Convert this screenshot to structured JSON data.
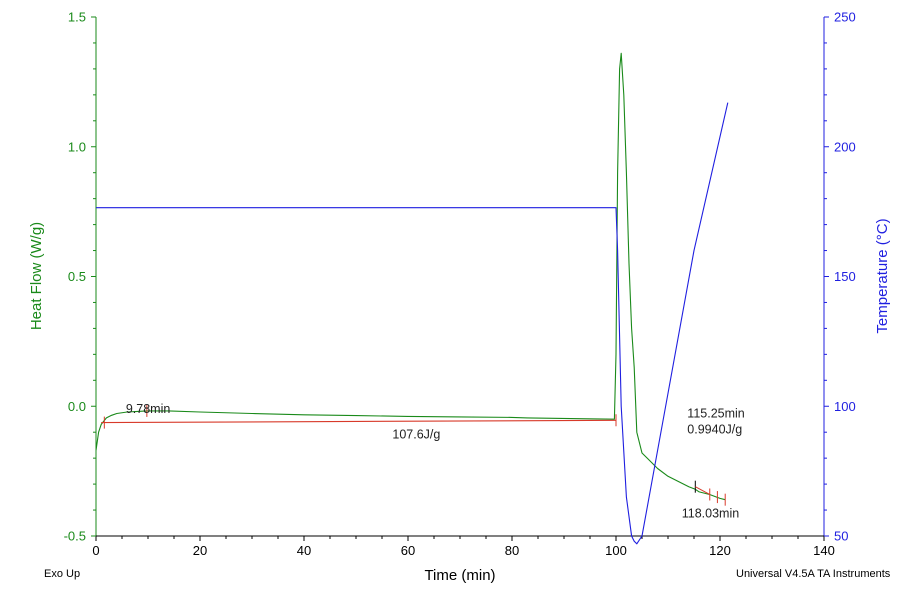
{
  "chart_data": {
    "type": "line",
    "xlabel": "Time (min)",
    "ylabel_left": "Heat Flow (W/g)",
    "ylabel_right": "Temperature (°C)",
    "xlim": [
      0,
      140
    ],
    "ylim_left": [
      -0.5,
      1.5
    ],
    "ylim_right": [
      50,
      250
    ],
    "x_ticks": [
      "0",
      "20",
      "40",
      "60",
      "80",
      "100",
      "120",
      "140"
    ],
    "y_left_ticks": [
      "-0.5",
      "0.0",
      "0.5",
      "1.0",
      "1.5"
    ],
    "y_right_ticks": [
      "50",
      "100",
      "150",
      "200",
      "250"
    ],
    "colors": {
      "heat_flow": "#1a8a1a",
      "temperature": "#1f1fe0",
      "baseline": "#d83a2a",
      "left_axis": "#1a8a1a",
      "right_axis": "#1f1fe0",
      "bottom_axis": "#000000"
    },
    "series": [
      {
        "axis": "left",
        "x": [
          0,
          0.5,
          1,
          2,
          3,
          4,
          6,
          8,
          9.78,
          14,
          20,
          30,
          40,
          50,
          60,
          70,
          80,
          83,
          99.7,
          100,
          100.3,
          100.7,
          101,
          101.5,
          102,
          102.5,
          103,
          103.5,
          104,
          105,
          106,
          108,
          110,
          112,
          114,
          115.25,
          116,
          118,
          120,
          121
        ],
        "y": [
          -0.17,
          -0.1,
          -0.07,
          -0.045,
          -0.035,
          -0.028,
          -0.022,
          -0.02,
          -0.018,
          -0.018,
          -0.022,
          -0.028,
          -0.033,
          -0.036,
          -0.039,
          -0.041,
          -0.043,
          -0.045,
          -0.05,
          0.2,
          0.9,
          1.3,
          1.36,
          1.2,
          0.9,
          0.55,
          0.3,
          0.15,
          -0.1,
          -0.18,
          -0.2,
          -0.24,
          -0.27,
          -0.29,
          -0.31,
          -0.32,
          -0.33,
          -0.34,
          -0.355,
          -0.36
        ]
      },
      {
        "axis": "right",
        "x": [
          0,
          100,
          100.3,
          101,
          102,
          103,
          103.5,
          104,
          105,
          110,
          115,
          121.5
        ],
        "y": [
          176.5,
          176.5,
          160,
          100,
          65,
          50,
          48,
          47,
          50,
          105,
          160,
          217
        ]
      },
      {
        "axis": "left",
        "x": [
          1,
          100
        ],
        "y": [
          -0.063,
          -0.054
        ]
      }
    ],
    "annotations": [
      {
        "text": "9.78min",
        "x": 9.78,
        "y": -0.018
      },
      {
        "text": "107.6J/g",
        "x": 57,
        "y": -0.055
      },
      {
        "text": "115.25min",
        "x": 115.25,
        "y": -0.31
      },
      {
        "text": "0.9940J/g",
        "x": 115.25,
        "y": -0.31
      },
      {
        "text": "118.03min",
        "x": 118.03,
        "y": -0.34
      }
    ]
  },
  "footer": {
    "left": "Exo Up",
    "right": "Universal V4.5A TA Instruments"
  }
}
